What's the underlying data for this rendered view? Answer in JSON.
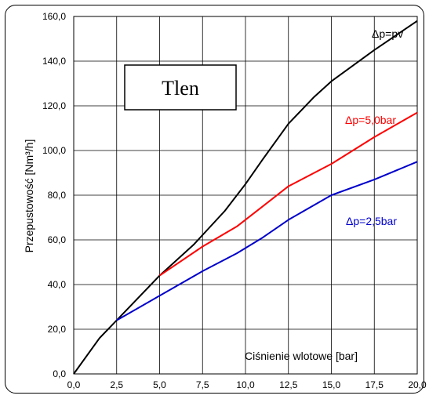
{
  "chart_data": {
    "type": "line",
    "title": "Tlen",
    "xlabel": "Ciśnienie wlotowe [bar]",
    "ylabel": "Przepustowość [Nm³/h]",
    "xlim": [
      0,
      20
    ],
    "ylim": [
      0,
      160
    ],
    "xticks": [
      "0,0",
      "2,5",
      "5,0",
      "7,5",
      "10,0",
      "12,5",
      "15,0",
      "17,5",
      "20,0"
    ],
    "yticks": [
      "0,0",
      "20,0",
      "40,0",
      "60,0",
      "80,0",
      "100,0",
      "120,0",
      "140,0",
      "160,0"
    ],
    "grid": true,
    "series": [
      {
        "name": "Δp=pv",
        "color": "#000000",
        "x": [
          0,
          1.5,
          2.5,
          5,
          7,
          8.8,
          10,
          11,
          12.5,
          14,
          15,
          17.5,
          20
        ],
        "y": [
          0,
          16,
          24,
          44,
          58,
          73,
          85,
          96,
          112,
          124,
          131,
          145,
          158
        ]
      },
      {
        "name": "Δp=5,0bar",
        "color": "#ff0000",
        "x": [
          5,
          7.5,
          9.5,
          11,
          12.5,
          15,
          17.5,
          20
        ],
        "y": [
          44,
          57,
          66,
          75,
          84,
          94,
          106,
          117
        ]
      },
      {
        "name": "Δp=2,5bar",
        "color": "#0000cc",
        "x": [
          2.5,
          5,
          7.5,
          9.5,
          11,
          12.5,
          15,
          17.5,
          20
        ],
        "y": [
          24,
          35,
          46,
          54,
          61,
          69,
          80,
          87,
          95
        ]
      }
    ],
    "annotations": [
      {
        "text": "Δp=pv",
        "color": "#000000"
      },
      {
        "text": "Δp=5,0bar",
        "color": "#ff0000"
      },
      {
        "text": "Δp=2,5bar",
        "color": "#0000cc"
      }
    ]
  }
}
